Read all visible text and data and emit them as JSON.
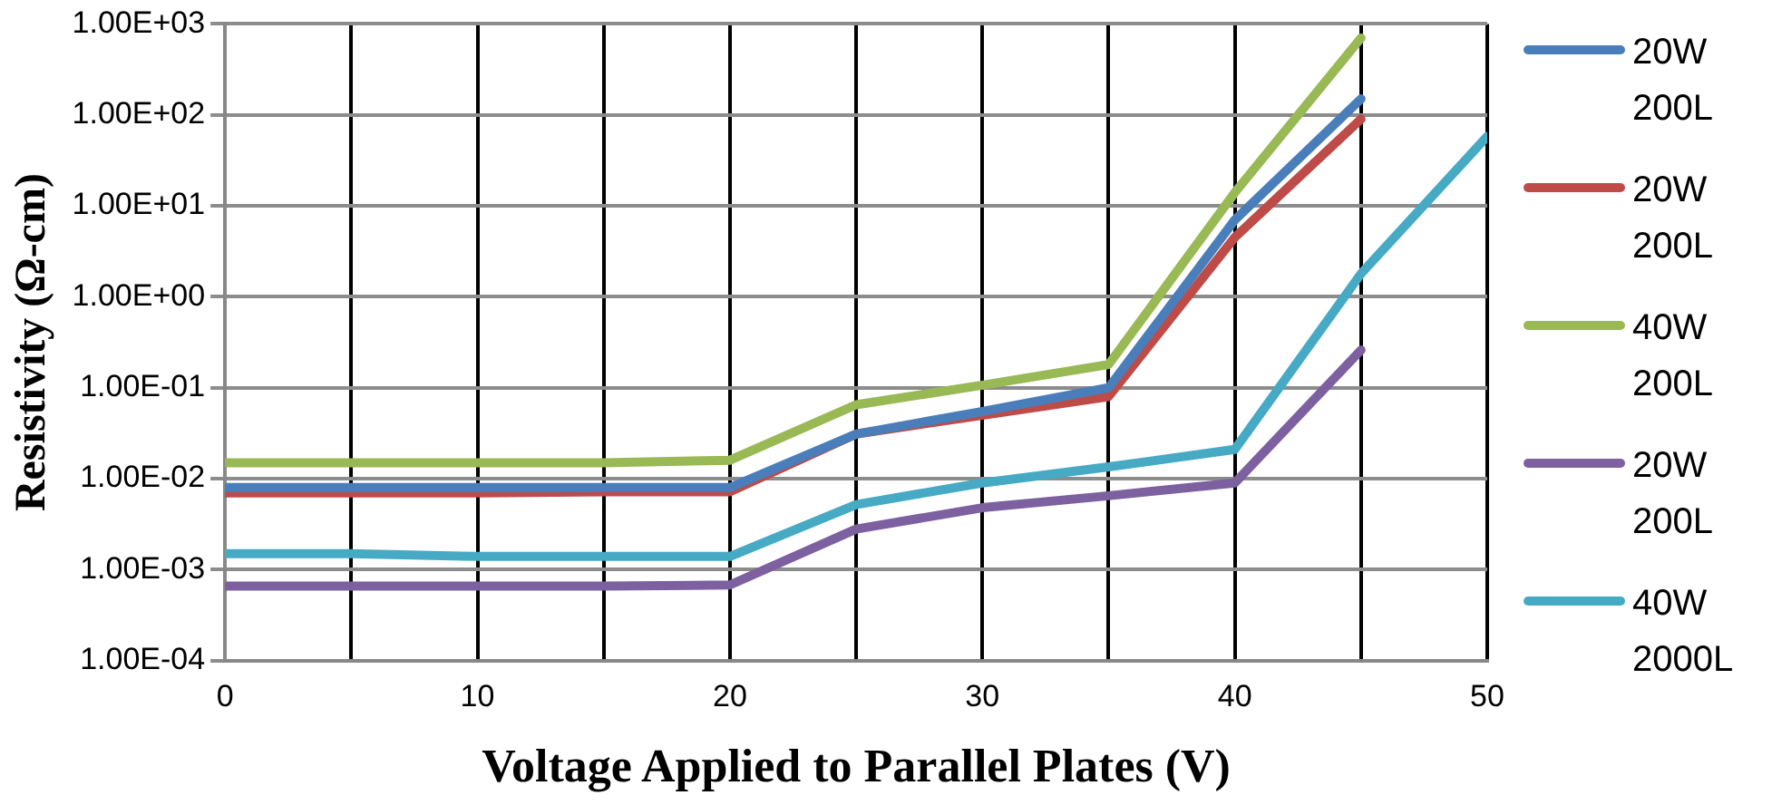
{
  "chart_data": {
    "type": "line",
    "xlabel": "Voltage Applied to Parallel Plates (V)",
    "ylabel": "Resistivity (Ω-cm)",
    "log": "y",
    "grid": true,
    "legend": "right",
    "marker": "none",
    "line_style": "solid",
    "xlim": [
      0,
      50
    ],
    "xticks": [
      0,
      {
        "value": 5,
        "label": null
      },
      10,
      {
        "value": 15,
        "label": null
      },
      20,
      {
        "value": 25,
        "label": null
      },
      30,
      {
        "value": 35,
        "label": null
      },
      40,
      {
        "value": 45,
        "label": null
      },
      50
    ],
    "ylim": [
      0.0001,
      1000
    ],
    "yticks": [
      {
        "value": 0.0001,
        "label": "1.00E-04"
      },
      {
        "value": 0.001,
        "label": "1.00E-03"
      },
      {
        "value": 0.01,
        "label": "1.00E-02"
      },
      {
        "value": 0.1,
        "label": "1.00E-01"
      },
      {
        "value": 1,
        "label": "1.00E+00"
      },
      {
        "value": 10,
        "label": "1.00E+01"
      },
      {
        "value": 100,
        "label": "1.00E+02"
      },
      {
        "value": 1000,
        "label": "1.00E+03"
      }
    ],
    "x": [
      0,
      5,
      10,
      15,
      20,
      25,
      30,
      35,
      40,
      45,
      50
    ],
    "series": [
      {
        "name": "20W 200L",
        "color": "#4a7ebb",
        "values": [
          0.008,
          0.008,
          0.008,
          0.008,
          0.008,
          0.031,
          0.055,
          0.1,
          7,
          150,
          null
        ]
      },
      {
        "name": "20W 200L",
        "color": "#be4b48",
        "values": [
          0.007,
          0.007,
          0.007,
          0.0072,
          0.0072,
          0.031,
          0.05,
          0.08,
          4.5,
          90,
          null
        ]
      },
      {
        "name": "40W 200L",
        "color": "#98b954",
        "values": [
          0.015,
          0.015,
          0.015,
          0.015,
          0.016,
          0.065,
          0.107,
          0.18,
          14,
          700,
          null
        ]
      },
      {
        "name": "20W 200L",
        "color": "#7d60a0",
        "values": [
          0.00066,
          0.00066,
          0.00066,
          0.00066,
          0.00068,
          0.0028,
          0.0048,
          0.0065,
          0.009,
          0.26,
          null
        ]
      },
      {
        "name": "40W 2000L",
        "color": "#46aac5",
        "values": [
          0.0015,
          0.0015,
          0.0014,
          0.0014,
          0.0014,
          0.0052,
          0.009,
          0.0135,
          0.021,
          1.8,
          58
        ]
      }
    ]
  }
}
